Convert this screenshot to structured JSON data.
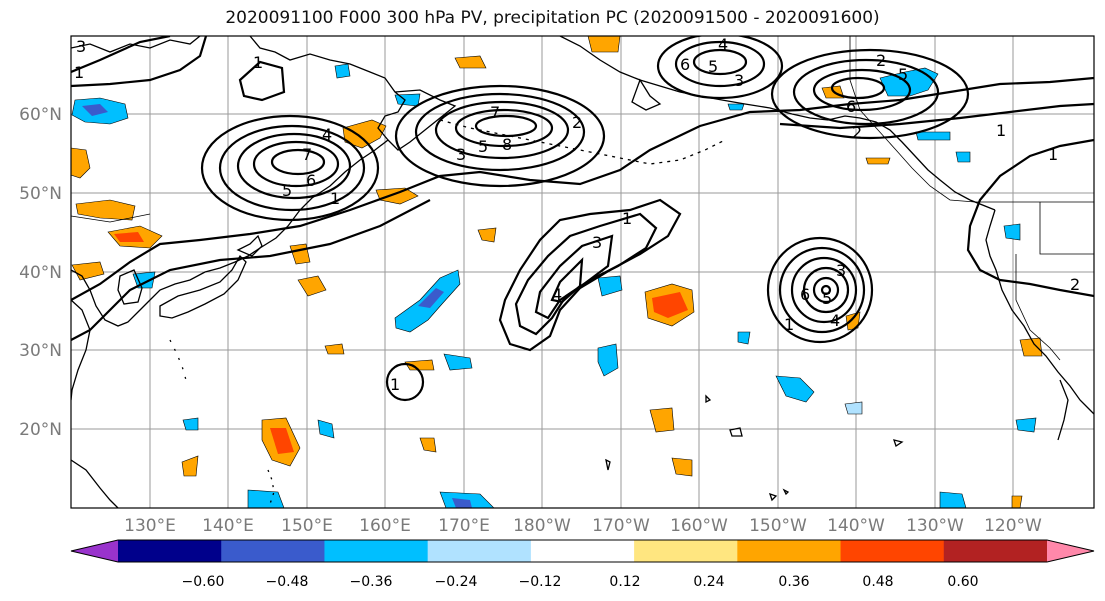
{
  "title": "2020091100 F000 300 hPa PV, precipitation PC (2020091500 - 2020091600)",
  "lon_labels": [
    "130°E",
    "140°E",
    "150°E",
    "160°E",
    "170°E",
    "180°W",
    "170°W",
    "160°W",
    "150°W",
    "140°W",
    "130°W",
    "120°W"
  ],
  "lat_labels": [
    "60°N",
    "50°N",
    "40°N",
    "30°N",
    "20°N"
  ],
  "colorbar": {
    "tick_labels": [
      "−0.60",
      "−0.48",
      "−0.36",
      "−0.24",
      "−0.12",
      "0.12",
      "0.24",
      "0.36",
      "0.48",
      "0.60"
    ],
    "colors": [
      "#9933cc",
      "#00008b",
      "#3a5bcc",
      "#00bfff",
      "#b0e2ff",
      "#ffffff",
      "#ffe680",
      "#ffa500",
      "#ff4500",
      "#b22222",
      "#ff88aa"
    ]
  },
  "pv_contour_labels": [
    "3",
    "1",
    "1",
    "4",
    "5",
    "6",
    "7",
    "8",
    "5",
    "7",
    "3",
    "2",
    "3",
    "1",
    "3",
    "4",
    "5",
    "6",
    "4",
    "3",
    "5",
    "6",
    "2",
    "1",
    "1",
    "5",
    "2",
    "6",
    "4",
    "1",
    "2",
    "1",
    "1"
  ],
  "chart_data": {
    "type": "map",
    "field_contours": "300 hPa PV (contour labels 1–8)",
    "shading": "precipitation PC",
    "domain": {
      "lon": [
        "125°E",
        "115°W"
      ],
      "lat": [
        "~10°N",
        "~70°N"
      ]
    },
    "colorbar_levels": [
      -0.6,
      -0.48,
      -0.36,
      -0.24,
      -0.12,
      0.12,
      0.24,
      0.36,
      0.48,
      0.6
    ]
  }
}
